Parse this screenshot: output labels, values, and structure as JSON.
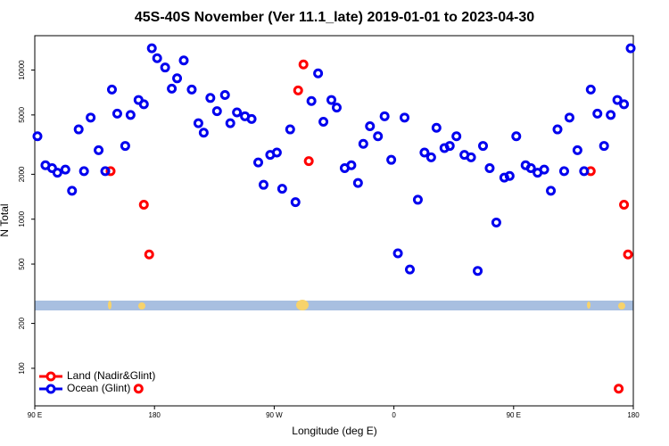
{
  "chart_data": {
    "type": "scatter",
    "title": "45S-40S November (Ver 11.1_late)   2019-01-01 to 2023-04-30",
    "x_label": "Longitude (deg E)",
    "y_label": "N Total",
    "log_y": true,
    "legend": "bottom-left",
    "xlim": [
      90,
      540
    ],
    "xticks": [
      {
        "value": 90,
        "label": "90 E"
      },
      {
        "value": 180,
        "label": "180"
      },
      {
        "value": 270,
        "label": "90 W"
      },
      {
        "value": 360,
        "label": "0"
      },
      {
        "value": 450,
        "label": "90 E"
      },
      {
        "value": 540,
        "label": "180"
      }
    ],
    "ylim": [
      56,
      17000
    ],
    "yticks": [
      100,
      200,
      500,
      1000,
      2000,
      5000,
      10000
    ],
    "series": [
      {
        "name": "Land (Nadir&Glint)",
        "color": "#ff0000",
        "x": [
          147,
          172,
          176,
          292,
          288,
          296,
          508,
          533,
          536,
          168,
          529
        ],
        "values": [
          2100,
          1250,
          580,
          10900,
          7300,
          2450,
          2100,
          1250,
          580,
          73,
          73
        ]
      },
      {
        "name": "Ocean (Glint)",
        "color": "#0000ee",
        "x": [
          92,
          98,
          103,
          107,
          113,
          118,
          123,
          127,
          132,
          138,
          143,
          148,
          152,
          158,
          162,
          168,
          172,
          178,
          182,
          188,
          193,
          197,
          202,
          208,
          213,
          217,
          222,
          227,
          233,
          237,
          242,
          248,
          253,
          258,
          262,
          267,
          272,
          276,
          282,
          286,
          298,
          303,
          307,
          313,
          317,
          323,
          328,
          333,
          337,
          342,
          348,
          353,
          358,
          363,
          368,
          372,
          378,
          383,
          388,
          392,
          398,
          402,
          407,
          413,
          418,
          423,
          427,
          432,
          437,
          443,
          447,
          452,
          459,
          463,
          468,
          473,
          478,
          483,
          488,
          492,
          498,
          503,
          508,
          513,
          518,
          523,
          528,
          533,
          538
        ],
        "values": [
          3600,
          2300,
          2200,
          2050,
          2150,
          1550,
          4000,
          2100,
          4800,
          2900,
          2100,
          7400,
          5100,
          3100,
          5000,
          6300,
          5900,
          14000,
          12000,
          10400,
          7500,
          8800,
          11600,
          7400,
          4400,
          3800,
          6500,
          5300,
          6800,
          4400,
          5200,
          4900,
          4700,
          2400,
          1700,
          2700,
          2800,
          1600,
          4000,
          1300,
          6200,
          9500,
          4500,
          6300,
          5600,
          2200,
          2300,
          1750,
          3200,
          4200,
          3600,
          4900,
          2500,
          590,
          4800,
          460,
          1350,
          2800,
          2600,
          4100,
          3000,
          3100,
          3600,
          2700,
          2600,
          450,
          3100,
          2200,
          950,
          1900,
          1950,
          3600,
          2300,
          2200,
          2050,
          2150,
          1550,
          4000,
          2100,
          4800,
          2900,
          2100,
          7400,
          5100,
          3100,
          5000,
          6300,
          5900,
          14000
        ]
      }
    ]
  }
}
